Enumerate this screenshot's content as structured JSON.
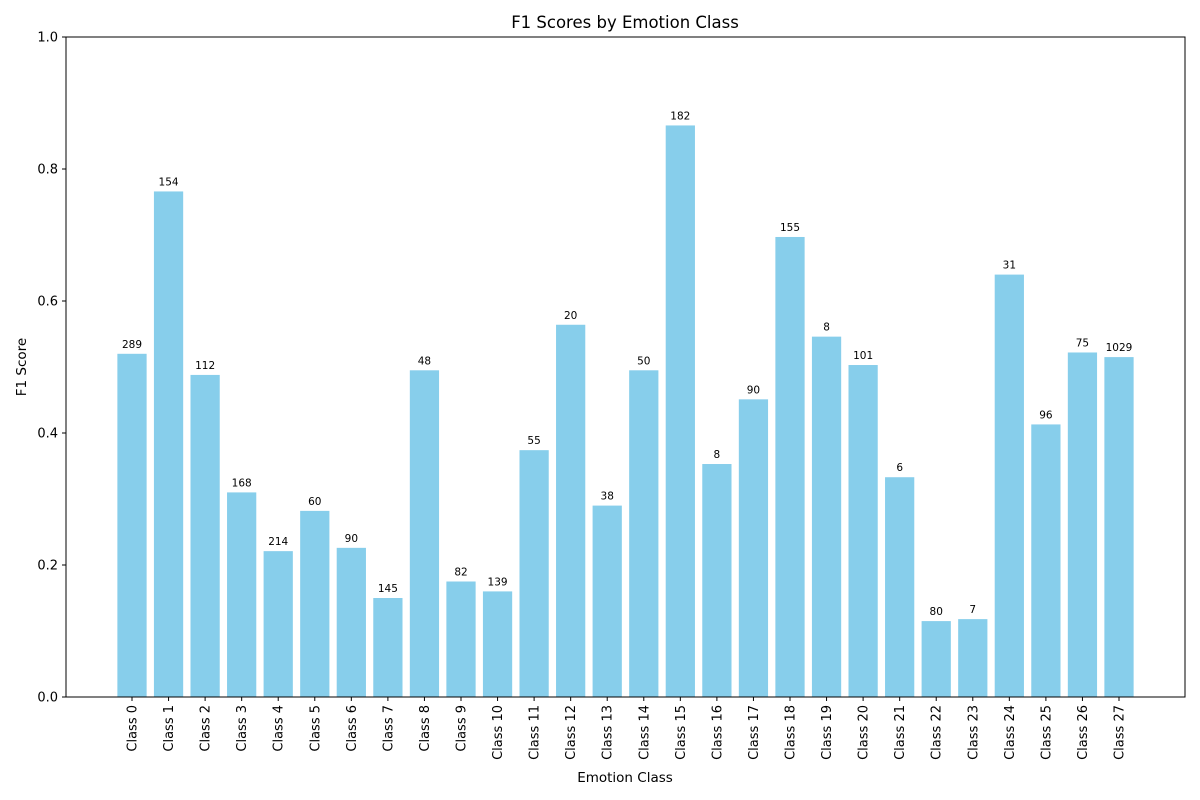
{
  "chart_data": {
    "type": "bar",
    "title": "F1 Scores by Emotion Class",
    "xlabel": "Emotion Class",
    "ylabel": "F1 Score",
    "ylim": [
      0,
      1.0
    ],
    "yticks": [
      "0.0",
      "0.2",
      "0.4",
      "0.6",
      "0.8",
      "1.0"
    ],
    "grid": false,
    "bar_color": "#87ceeb",
    "categories": [
      "Class 0",
      "Class 1",
      "Class 2",
      "Class 3",
      "Class 4",
      "Class 5",
      "Class 6",
      "Class 7",
      "Class 8",
      "Class 9",
      "Class 10",
      "Class 11",
      "Class 12",
      "Class 13",
      "Class 14",
      "Class 15",
      "Class 16",
      "Class 17",
      "Class 18",
      "Class 19",
      "Class 20",
      "Class 21",
      "Class 22",
      "Class 23",
      "Class 24",
      "Class 25",
      "Class 26",
      "Class 27"
    ],
    "values": [
      0.52,
      0.766,
      0.488,
      0.31,
      0.221,
      0.282,
      0.226,
      0.15,
      0.495,
      0.175,
      0.16,
      0.374,
      0.564,
      0.29,
      0.495,
      0.866,
      0.353,
      0.451,
      0.697,
      0.546,
      0.503,
      0.333,
      0.115,
      0.118,
      0.64,
      0.413,
      0.522,
      0.515
    ],
    "bar_labels": [
      "289",
      "154",
      "112",
      "168",
      "214",
      "60",
      "90",
      "145",
      "48",
      "82",
      "139",
      "55",
      "20",
      "38",
      "50",
      "182",
      "8",
      "90",
      "155",
      "8",
      "101",
      "6",
      "80",
      "7",
      "31",
      "96",
      "75",
      "1029"
    ]
  }
}
